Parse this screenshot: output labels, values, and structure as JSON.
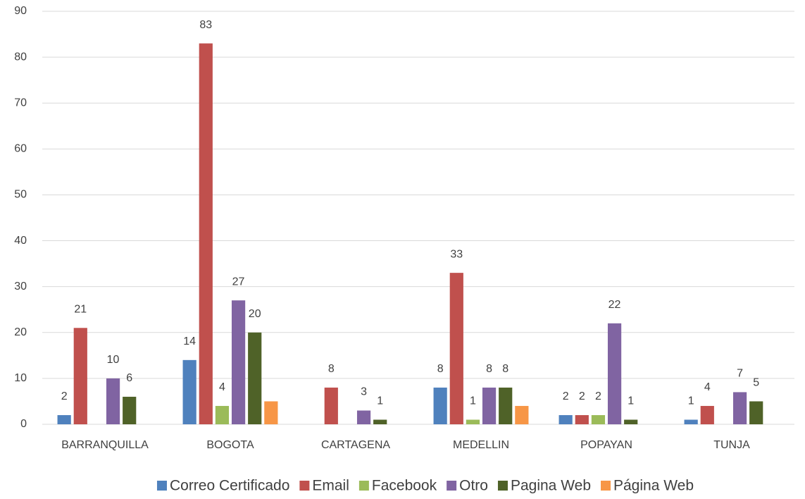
{
  "chart_data": {
    "type": "bar",
    "categories": [
      "BARRANQUILLA",
      "BOGOTA",
      "CARTAGENA",
      "MEDELLIN",
      "POPAYAN",
      "TUNJA"
    ],
    "series": [
      {
        "name": "Correo Certificado",
        "color": "#4f81bd",
        "values": [
          2,
          14,
          null,
          8,
          2,
          1
        ],
        "data_labels": true
      },
      {
        "name": "Email",
        "color": "#c0504d",
        "values": [
          21,
          83,
          8,
          33,
          2,
          4
        ],
        "data_labels": true
      },
      {
        "name": "Facebook",
        "color": "#9bbb59",
        "values": [
          null,
          4,
          null,
          1,
          2,
          null
        ],
        "data_labels": true
      },
      {
        "name": "Otro",
        "color": "#8064a2",
        "values": [
          10,
          27,
          3,
          8,
          22,
          7
        ],
        "data_labels": true
      },
      {
        "name": "Pagina Web",
        "color": "#4f6228",
        "values": [
          6,
          20,
          1,
          8,
          1,
          5
        ],
        "data_labels": true
      },
      {
        "name": "Página Web",
        "color": "#f79646",
        "values": [
          null,
          5,
          null,
          4,
          null,
          null
        ],
        "data_labels": false
      }
    ],
    "ylim": [
      0,
      90
    ],
    "yticks": [
      0,
      10,
      20,
      30,
      40,
      50,
      60,
      70,
      80,
      90
    ],
    "grid": true,
    "legend": "bottom"
  }
}
